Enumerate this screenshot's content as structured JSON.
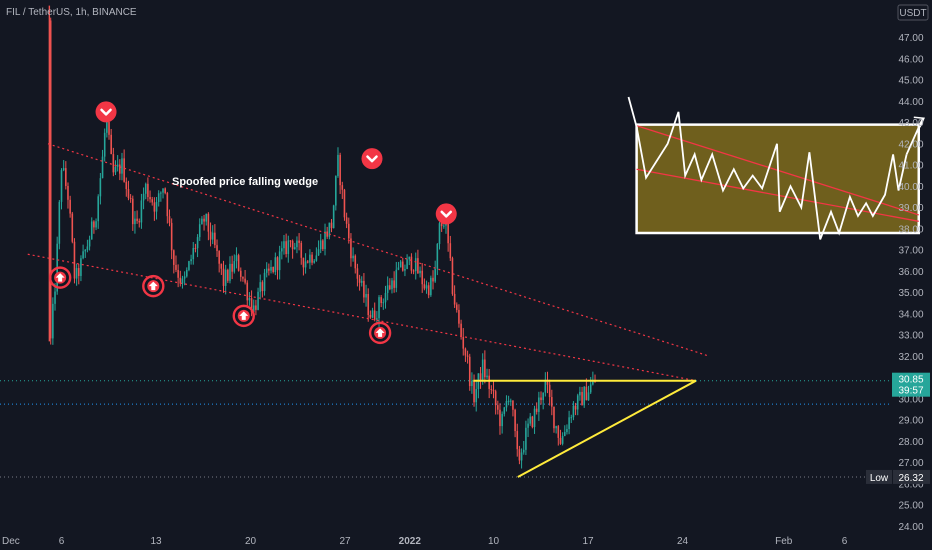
{
  "header": {
    "title": "FIL / TetherUS, 1h, BINANCE",
    "currency": "USDT"
  },
  "colors": {
    "background": "#131722",
    "candle_up": "#26a69a",
    "candle_down": "#ef5350",
    "wedge_line": "#f23645",
    "triangle_line": "#ffeb3b",
    "box_fill": "#6f5f1d",
    "current_price_tag": "#26a69a",
    "low_tag": "#2a2e39"
  },
  "annotations": {
    "wedge_label": "Spoofed price falling wedge"
  },
  "price_tag": {
    "value": "30.85",
    "countdown": "39:57"
  },
  "low_tag": {
    "label": "Low",
    "value": "26.32"
  },
  "chart_data": {
    "type": "candlestick",
    "title": "FIL / TetherUS, 1h, BINANCE",
    "ylabel": "USDT",
    "ylim": [
      23.5,
      48.5
    ],
    "y_ticks": [
      "47.00",
      "46.00",
      "45.00",
      "44.00",
      "43.00",
      "42.00",
      "41.00",
      "40.00",
      "39.00",
      "38.00",
      "37.00",
      "36.00",
      "35.00",
      "34.00",
      "33.00",
      "32.00",
      "31.00",
      "30.00",
      "29.00",
      "28.00",
      "27.00",
      "26.00",
      "25.00",
      "24.00"
    ],
    "x_ticks": [
      "Dec",
      "6",
      "13",
      "20",
      "27",
      "2022",
      "10",
      "17",
      "24",
      "Feb",
      "6"
    ],
    "price_path": [
      {
        "t": 0,
        "p": 47.8
      },
      {
        "t": 0.2,
        "p": 32.7
      },
      {
        "t": 0.6,
        "p": 36.0
      },
      {
        "t": 1.0,
        "p": 41.0
      },
      {
        "t": 1.5,
        "p": 39.5
      },
      {
        "t": 2.0,
        "p": 35.5
      },
      {
        "t": 2.8,
        "p": 37.0
      },
      {
        "t": 3.5,
        "p": 38.5
      },
      {
        "t": 4.0,
        "p": 41.0
      },
      {
        "t": 4.3,
        "p": 43.2
      },
      {
        "t": 4.8,
        "p": 40.5
      },
      {
        "t": 5.5,
        "p": 41.0
      },
      {
        "t": 6.5,
        "p": 38.0
      },
      {
        "t": 7.2,
        "p": 40.0
      },
      {
        "t": 8.0,
        "p": 39.0
      },
      {
        "t": 8.6,
        "p": 40.2
      },
      {
        "t": 9.3,
        "p": 36.5
      },
      {
        "t": 10.0,
        "p": 35.3
      },
      {
        "t": 10.8,
        "p": 37.0
      },
      {
        "t": 11.6,
        "p": 38.5
      },
      {
        "t": 12.4,
        "p": 37.0
      },
      {
        "t": 13.0,
        "p": 35.5
      },
      {
        "t": 14.0,
        "p": 36.5
      },
      {
        "t": 15.2,
        "p": 34.2
      },
      {
        "t": 16.0,
        "p": 35.5
      },
      {
        "t": 17.0,
        "p": 36.5
      },
      {
        "t": 18.0,
        "p": 37.5
      },
      {
        "t": 19.0,
        "p": 36.5
      },
      {
        "t": 20.0,
        "p": 37.0
      },
      {
        "t": 20.6,
        "p": 37.8
      },
      {
        "t": 21.0,
        "p": 38.2
      },
      {
        "t": 21.5,
        "p": 41.2
      },
      {
        "t": 22.0,
        "p": 38.5
      },
      {
        "t": 22.6,
        "p": 36.5
      },
      {
        "t": 23.3,
        "p": 35.0
      },
      {
        "t": 24.0,
        "p": 33.8
      },
      {
        "t": 25.0,
        "p": 35.0
      },
      {
        "t": 26.0,
        "p": 36.0
      },
      {
        "t": 27.0,
        "p": 36.5
      },
      {
        "t": 28.0,
        "p": 35.2
      },
      {
        "t": 28.6,
        "p": 35.5
      },
      {
        "t": 29.0,
        "p": 38.0
      },
      {
        "t": 29.4,
        "p": 38.5
      },
      {
        "t": 30.0,
        "p": 35.0
      },
      {
        "t": 30.5,
        "p": 33.2
      },
      {
        "t": 31.0,
        "p": 32.0
      },
      {
        "t": 31.5,
        "p": 30.0
      },
      {
        "t": 32.2,
        "p": 31.5
      },
      {
        "t": 33.0,
        "p": 30.0
      },
      {
        "t": 33.6,
        "p": 28.8
      },
      {
        "t": 34.2,
        "p": 30.5
      },
      {
        "t": 34.8,
        "p": 27.0
      },
      {
        "t": 35.5,
        "p": 28.5
      },
      {
        "t": 36.2,
        "p": 29.5
      },
      {
        "t": 36.8,
        "p": 30.8
      },
      {
        "t": 37.5,
        "p": 29.0
      },
      {
        "t": 38.0,
        "p": 28.0
      },
      {
        "t": 38.8,
        "p": 29.5
      },
      {
        "t": 39.5,
        "p": 30.0
      },
      {
        "t": 40.2,
        "p": 30.6
      },
      {
        "t": 40.6,
        "p": 30.85
      }
    ],
    "time_axis": {
      "t_start": 0,
      "t_end": 41,
      "x_ticks_t": [
        -1.3,
        1.0,
        8.0,
        15.0,
        22.0,
        26.8,
        33.0,
        40.0,
        47.0,
        54.5,
        59.0
      ]
    },
    "wedge": {
      "upper": [
        {
          "t": 0,
          "p": 42.0
        },
        {
          "t": 49,
          "p": 32.0
        }
      ],
      "lower": [
        {
          "t": -1.5,
          "p": 36.8
        },
        {
          "t": 48,
          "p": 30.85
        }
      ]
    },
    "triangle": {
      "top": [
        {
          "t": 31.5,
          "p": 30.85
        },
        {
          "t": 48,
          "p": 30.85
        }
      ],
      "bottom": [
        {
          "t": 34.8,
          "p": 26.32
        },
        {
          "t": 48,
          "p": 30.85
        }
      ]
    },
    "horizontal_lines": [
      {
        "p": 30.85,
        "style": "dotted",
        "color": "#26a69a"
      },
      {
        "p": 29.75,
        "style": "dotted",
        "color": "#2196f3"
      },
      {
        "p": 26.32,
        "style": "dotted",
        "color": "#787b86"
      }
    ],
    "markers": {
      "down": [
        {
          "t": 4.3,
          "p": 43.5
        },
        {
          "t": 24.0,
          "p": 41.3
        },
        {
          "t": 29.5,
          "p": 38.7
        }
      ],
      "up": [
        {
          "t": 0.9,
          "p": 35.7
        },
        {
          "t": 7.8,
          "p": 35.3
        },
        {
          "t": 14.5,
          "p": 33.9
        },
        {
          "t": 24.6,
          "p": 33.1
        }
      ]
    },
    "inset_box": {
      "p_top": 42.9,
      "p_bottom": 37.8,
      "wave": [
        {
          "t": 43.0,
          "p": 44.2
        },
        {
          "t": 43.6,
          "p": 42.8
        },
        {
          "t": 44.3,
          "p": 40.4
        },
        {
          "t": 45.9,
          "p": 42.0
        },
        {
          "t": 46.7,
          "p": 43.5
        },
        {
          "t": 47.2,
          "p": 40.5
        },
        {
          "t": 47.9,
          "p": 41.5
        },
        {
          "t": 48.4,
          "p": 40.3
        },
        {
          "t": 49.2,
          "p": 41.5
        },
        {
          "t": 50.0,
          "p": 39.8
        },
        {
          "t": 50.8,
          "p": 40.8
        },
        {
          "t": 51.5,
          "p": 39.9
        },
        {
          "t": 52.2,
          "p": 40.5
        },
        {
          "t": 52.9,
          "p": 39.9
        },
        {
          "t": 54.0,
          "p": 42.0
        },
        {
          "t": 54.2,
          "p": 38.8
        },
        {
          "t": 55.0,
          "p": 40.0
        },
        {
          "t": 55.8,
          "p": 39.0
        },
        {
          "t": 56.4,
          "p": 41.6
        },
        {
          "t": 57.2,
          "p": 37.5
        },
        {
          "t": 58.0,
          "p": 38.8
        },
        {
          "t": 58.6,
          "p": 37.8
        },
        {
          "t": 59.4,
          "p": 39.5
        },
        {
          "t": 60.0,
          "p": 38.6
        },
        {
          "t": 60.6,
          "p": 39.2
        },
        {
          "t": 61.1,
          "p": 38.6
        },
        {
          "t": 62.0,
          "p": 39.6
        },
        {
          "t": 62.6,
          "p": 41.5
        },
        {
          "t": 63.0,
          "p": 39.8
        },
        {
          "t": 63.6,
          "p": 41.5
        }
      ],
      "arrow_tip": {
        "t": 64.8,
        "p": 43.2
      },
      "red_lines": [
        [
          {
            "t": 43.6,
            "p": 42.85
          },
          {
            "t": 64.5,
            "p": 38.65
          }
        ],
        [
          {
            "t": 43.6,
            "p": 40.8
          },
          {
            "t": 64.5,
            "p": 38.35
          }
        ]
      ]
    }
  }
}
